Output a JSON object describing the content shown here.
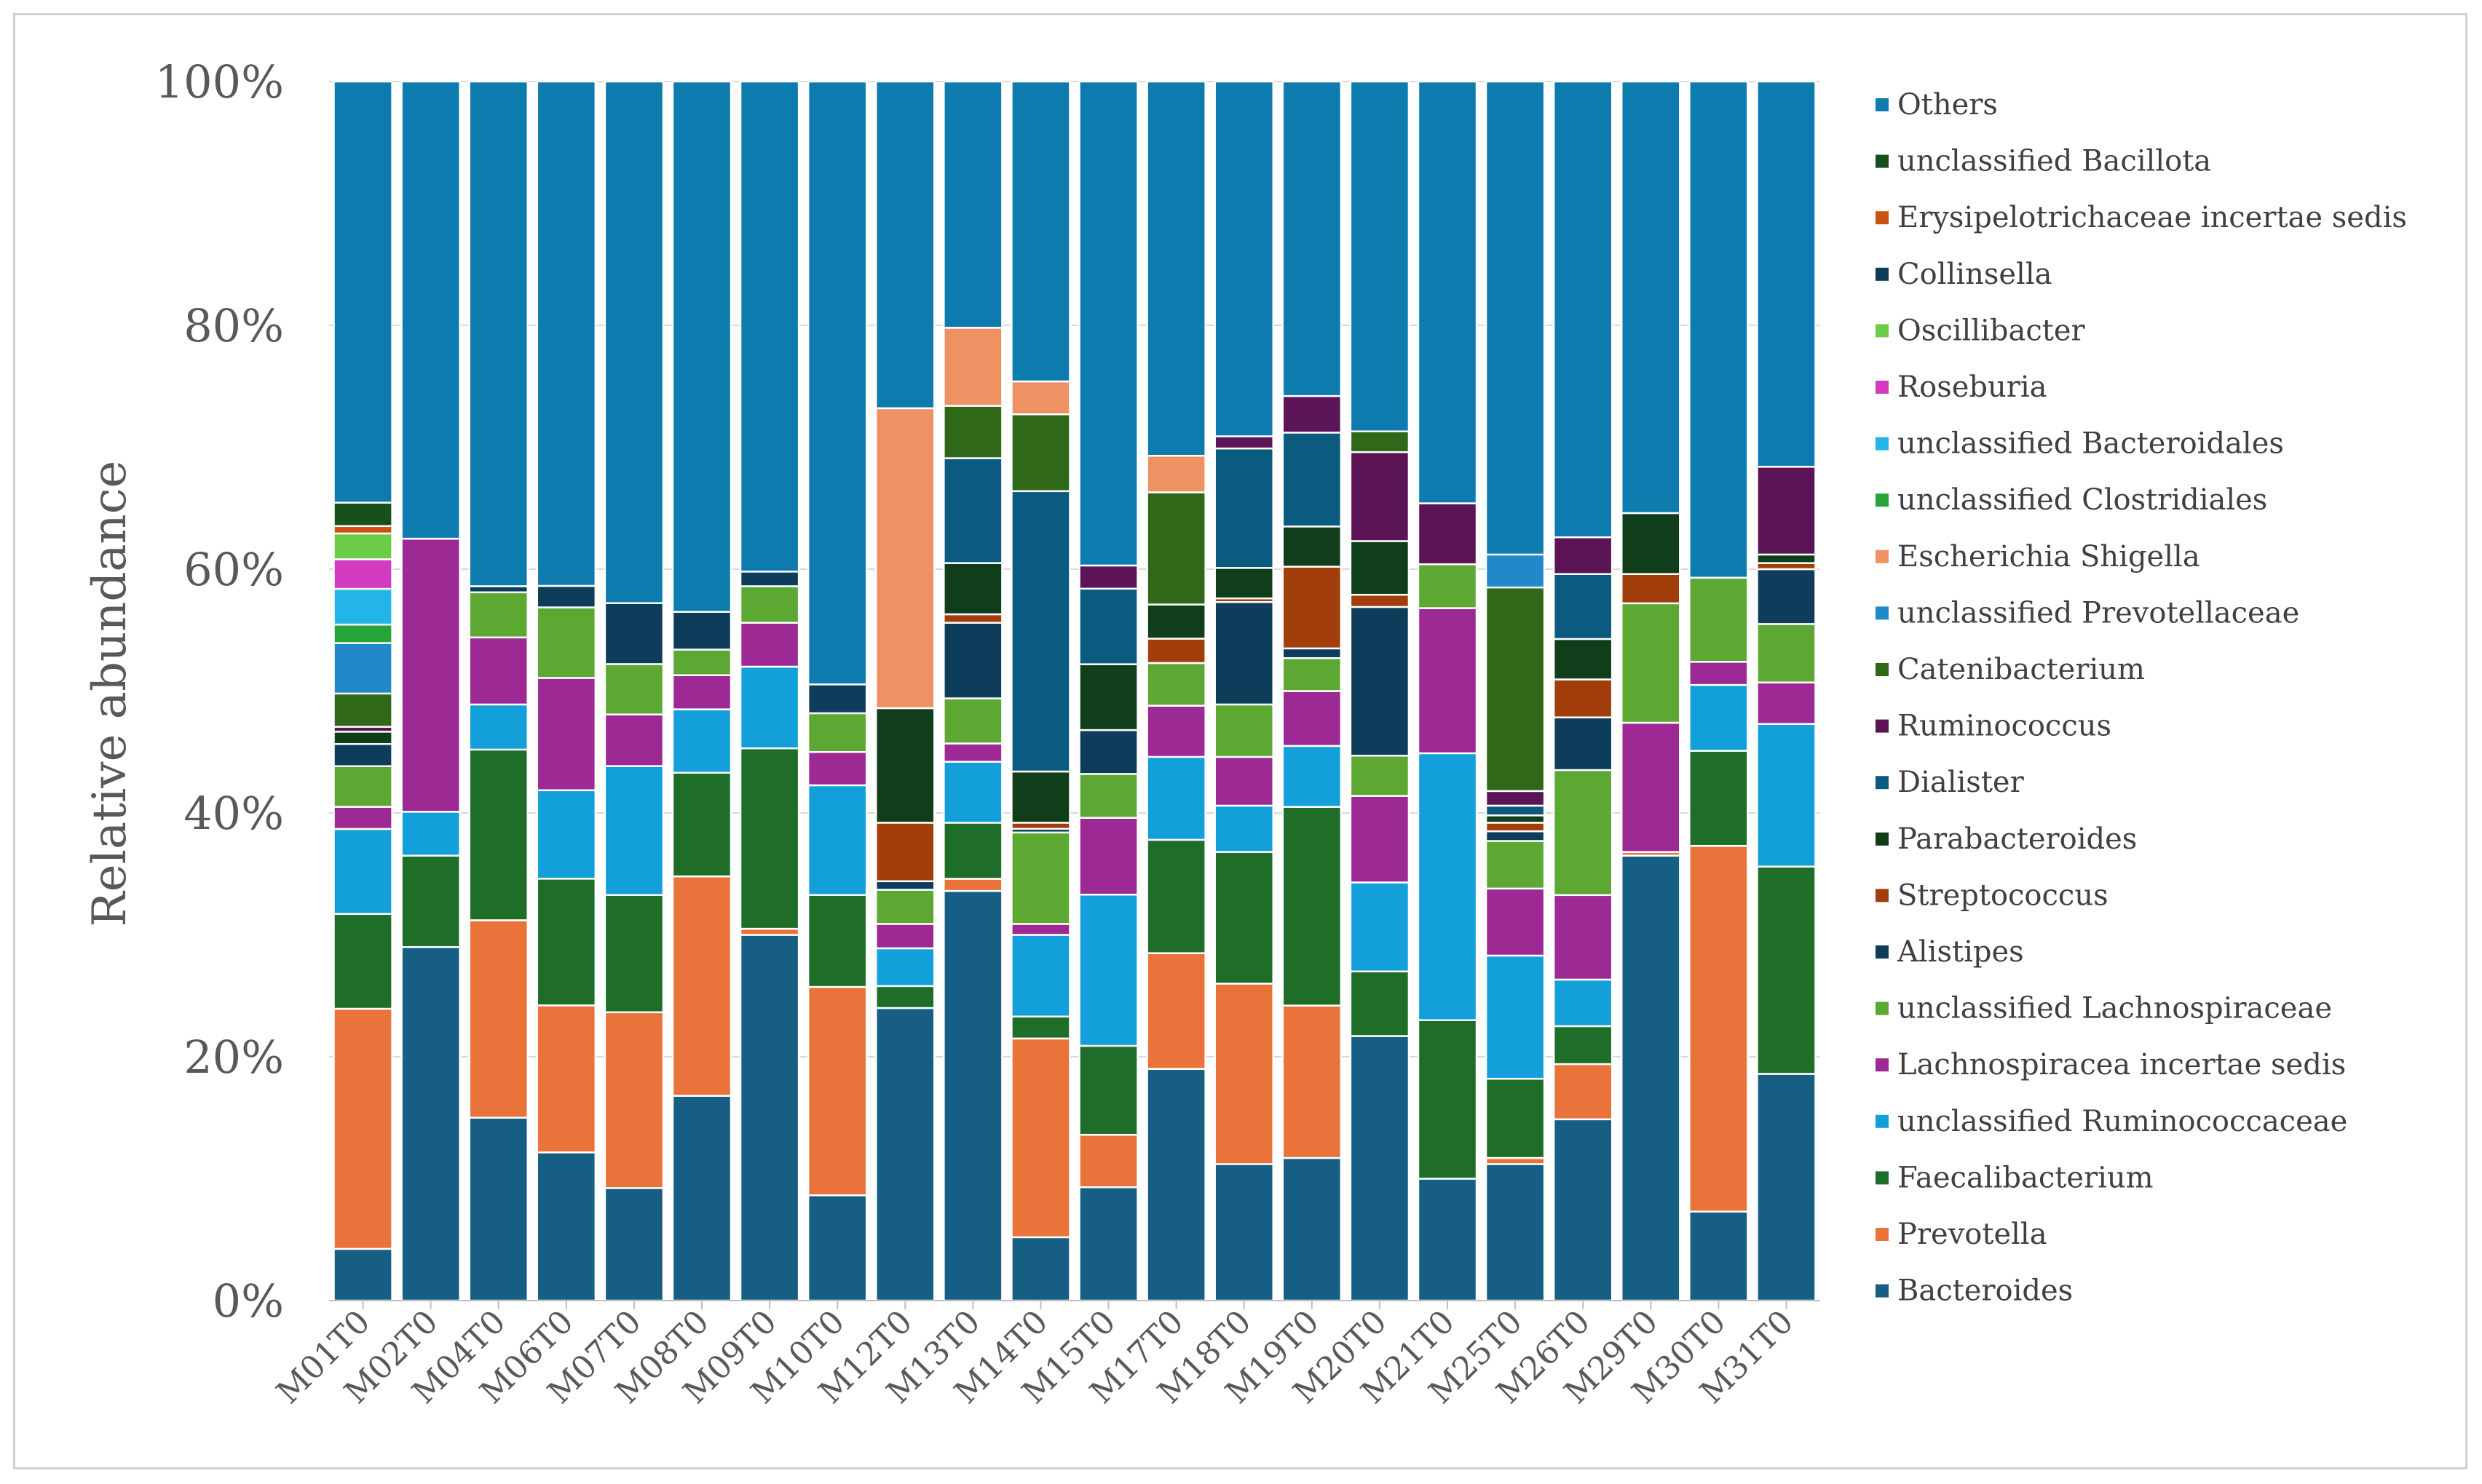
{
  "chart_data": {
    "type": "bar",
    "stacked": "percent",
    "ylabel": "Relative abundance",
    "xlabel": "",
    "ylim": [
      0,
      100
    ],
    "yticks": [
      "0%",
      "20%",
      "40%",
      "60%",
      "80%",
      "100%"
    ],
    "legend_position": "right",
    "categories": [
      "M01T0",
      "M02T0",
      "M04T0",
      "M06T0",
      "M07T0",
      "M08T0",
      "M09T0",
      "M10T0",
      "M12T0",
      "M13T0",
      "M14T0",
      "M15T0",
      "M17T0",
      "M18T0",
      "M19T0",
      "M20T0",
      "M21T0",
      "M25T0",
      "M26T0",
      "M29T0",
      "M30T0",
      "M31T0"
    ],
    "series": [
      {
        "name": "Bacteroides",
        "color": "#165E83",
        "values": [
          4.2,
          29,
          15,
          12.4,
          9.6,
          16.8,
          30,
          9.5,
          24,
          33.6,
          5.2,
          9.3,
          19,
          11.2,
          11.7,
          21.7,
          10,
          11.2,
          14.8,
          36.5,
          7.3,
          18.6
        ]
      },
      {
        "name": "Prevotella",
        "color": "#E9733A",
        "values": [
          19.5,
          0,
          16.2,
          12.3,
          15,
          18,
          0.5,
          18.8,
          0,
          1,
          16.3,
          4.3,
          9.5,
          14.8,
          12.5,
          0,
          0,
          0.5,
          4.5,
          0.3,
          30,
          0
        ]
      },
      {
        "name": "Faecalibacterium",
        "color": "#1E6E2A",
        "values": [
          7.7,
          7.5,
          14,
          10.6,
          10,
          8.5,
          14.8,
          8.3,
          1.8,
          4.6,
          1.8,
          7.3,
          9.3,
          10.8,
          16.3,
          5.3,
          13,
          6.5,
          3.1,
          0,
          7.8,
          17
        ]
      },
      {
        "name": "unclassified Ruminococcaceae",
        "color": "#139FD9",
        "values": [
          6.9,
          3.6,
          3.7,
          7.4,
          11,
          5.2,
          6.7,
          9.9,
          3.1,
          5,
          6.7,
          12.4,
          6.8,
          3.8,
          5,
          7.3,
          21.9,
          10.1,
          3.8,
          0,
          5.4,
          11.7
        ]
      },
      {
        "name": "Lachnospiracea incertae sedis",
        "color": "#9D2A94",
        "values": [
          1.8,
          22.4,
          5.5,
          9.4,
          4.4,
          2.8,
          3.6,
          3,
          2,
          1.5,
          0.9,
          6.3,
          4.2,
          4,
          4.5,
          7.1,
          11.9,
          5.5,
          6.9,
          10.6,
          1.9,
          3.4
        ]
      },
      {
        "name": "unclassified Lachnospiraceae",
        "color": "#5DA733",
        "values": [
          3.3,
          0,
          3.7,
          5.9,
          4.3,
          2.1,
          3,
          3.5,
          2.8,
          3.7,
          7.5,
          3.6,
          3.5,
          4.3,
          2.7,
          3.3,
          3.6,
          3.9,
          10.2,
          9.8,
          6.9,
          4.8
        ]
      },
      {
        "name": "Alistipes",
        "color": "#0E3D5B",
        "values": [
          1.8,
          0,
          0.5,
          1.8,
          5.2,
          3.1,
          1.2,
          2.6,
          0.7,
          6.2,
          0.3,
          3.6,
          0,
          8.4,
          0.8,
          12.2,
          0,
          0.8,
          4.3,
          0,
          0,
          4.5
        ]
      },
      {
        "name": "Streptococcus",
        "color": "#A13E0B",
        "values": [
          0,
          0,
          0,
          0,
          0,
          0,
          0,
          0,
          4.8,
          0.7,
          0.5,
          0,
          2,
          0.3,
          6.7,
          1,
          0,
          0.7,
          3.1,
          2.4,
          0,
          0.5
        ]
      },
      {
        "name": "Parabacteroides",
        "color": "#103E1A",
        "values": [
          1,
          0,
          0,
          0,
          0,
          0,
          0,
          0,
          9.4,
          4.2,
          4.2,
          5.4,
          2.8,
          2.5,
          3.3,
          4.4,
          0,
          0.6,
          3.3,
          5,
          0,
          0.7
        ]
      },
      {
        "name": "Dialister",
        "color": "#0B5A80",
        "values": [
          0,
          0,
          0,
          0,
          0,
          0,
          0,
          0,
          0,
          8.6,
          23,
          6.2,
          0,
          9.8,
          7.7,
          0,
          0,
          0.8,
          5.3,
          0,
          0,
          0
        ]
      },
      {
        "name": "Ruminococcus",
        "color": "#5B1556",
        "values": [
          0.4,
          0,
          0,
          0,
          0,
          0,
          0,
          0,
          0,
          0,
          0,
          1.9,
          0,
          1,
          3,
          7.3,
          5,
          1.2,
          3,
          0,
          0,
          7.2
        ]
      },
      {
        "name": "Catenibacterium",
        "color": "#2E6818",
        "values": [
          2.7,
          0,
          0,
          0,
          0,
          0,
          0,
          0,
          0,
          4.3,
          6.3,
          0,
          9.2,
          0,
          0,
          1.7,
          0,
          16.7,
          0,
          0,
          0,
          0
        ]
      },
      {
        "name": "unclassified Prevotellaceae",
        "color": "#2289C8",
        "values": [
          4.1,
          0,
          0,
          0,
          0,
          0,
          0,
          0,
          0,
          0,
          0,
          0,
          0,
          0,
          0,
          0,
          0,
          2.7,
          0,
          0,
          0,
          0
        ]
      },
      {
        "name": "Escherichia Shigella",
        "color": "#EE9163",
        "values": [
          0,
          0,
          0,
          0,
          0,
          0,
          0,
          0,
          24.6,
          6.4,
          2.7,
          0,
          3,
          0,
          0,
          0,
          0,
          0,
          0,
          0,
          0,
          0
        ]
      },
      {
        "name": "unclassified Clostridiales",
        "color": "#27A439",
        "values": [
          1.5,
          0,
          0,
          0,
          0,
          0,
          0,
          0,
          0,
          0,
          0,
          0,
          0,
          0,
          0,
          0,
          0,
          0,
          0,
          0,
          0,
          0
        ]
      },
      {
        "name": "unclassified Bacteroidales",
        "color": "#23B5E8",
        "values": [
          2.9,
          0,
          0,
          0,
          0,
          0,
          0,
          0,
          0,
          0,
          0,
          0,
          0,
          0,
          0,
          0,
          0,
          0,
          0,
          0,
          0,
          0
        ]
      },
      {
        "name": "Roseburia",
        "color": "#D43BC0",
        "values": [
          2.4,
          0,
          0,
          0,
          0,
          0,
          0,
          0,
          0,
          0,
          0,
          0,
          0,
          0,
          0,
          0,
          0,
          0,
          0,
          0,
          0,
          0
        ]
      },
      {
        "name": "Oscillibacter",
        "color": "#6CCC46",
        "values": [
          2.1,
          0,
          0,
          0,
          0,
          0,
          0,
          0,
          0,
          0,
          0,
          0,
          0,
          0,
          0,
          0,
          0,
          0,
          0,
          0,
          0,
          0
        ]
      },
      {
        "name": "Collinsella",
        "color": "#0D3B58",
        "values": [
          0,
          0,
          0,
          0,
          0,
          0,
          0,
          0,
          0,
          0,
          0,
          0,
          0,
          0,
          0,
          0,
          0,
          0,
          0,
          0,
          0,
          0
        ]
      },
      {
        "name": "Erysipelotrichaceae incertae sedis",
        "color": "#C9530F",
        "values": [
          0.6,
          0,
          0,
          0,
          0,
          0,
          0,
          0,
          0,
          0,
          0,
          0,
          0,
          0,
          0,
          0,
          0,
          0,
          0,
          0,
          0,
          0
        ]
      },
      {
        "name": "unclassified Bacillota",
        "color": "#174F1F",
        "values": [
          1.9,
          0,
          0,
          0,
          0,
          0,
          0,
          0,
          0,
          0,
          0,
          0,
          0,
          0,
          0,
          0,
          0,
          0,
          0,
          0,
          0,
          0
        ]
      },
      {
        "name": "Others",
        "color": "#0E7BAE",
        "values": [
          34.2,
          37.5,
          41.4,
          42.2,
          44.5,
          43.5,
          40.2,
          54.4,
          26.8,
          20.2,
          24.6,
          39.7,
          30.7,
          29.1,
          25.8,
          28.7,
          34.6,
          38.8,
          37.2,
          35.4,
          40.7,
          31.6
        ]
      }
    ]
  }
}
